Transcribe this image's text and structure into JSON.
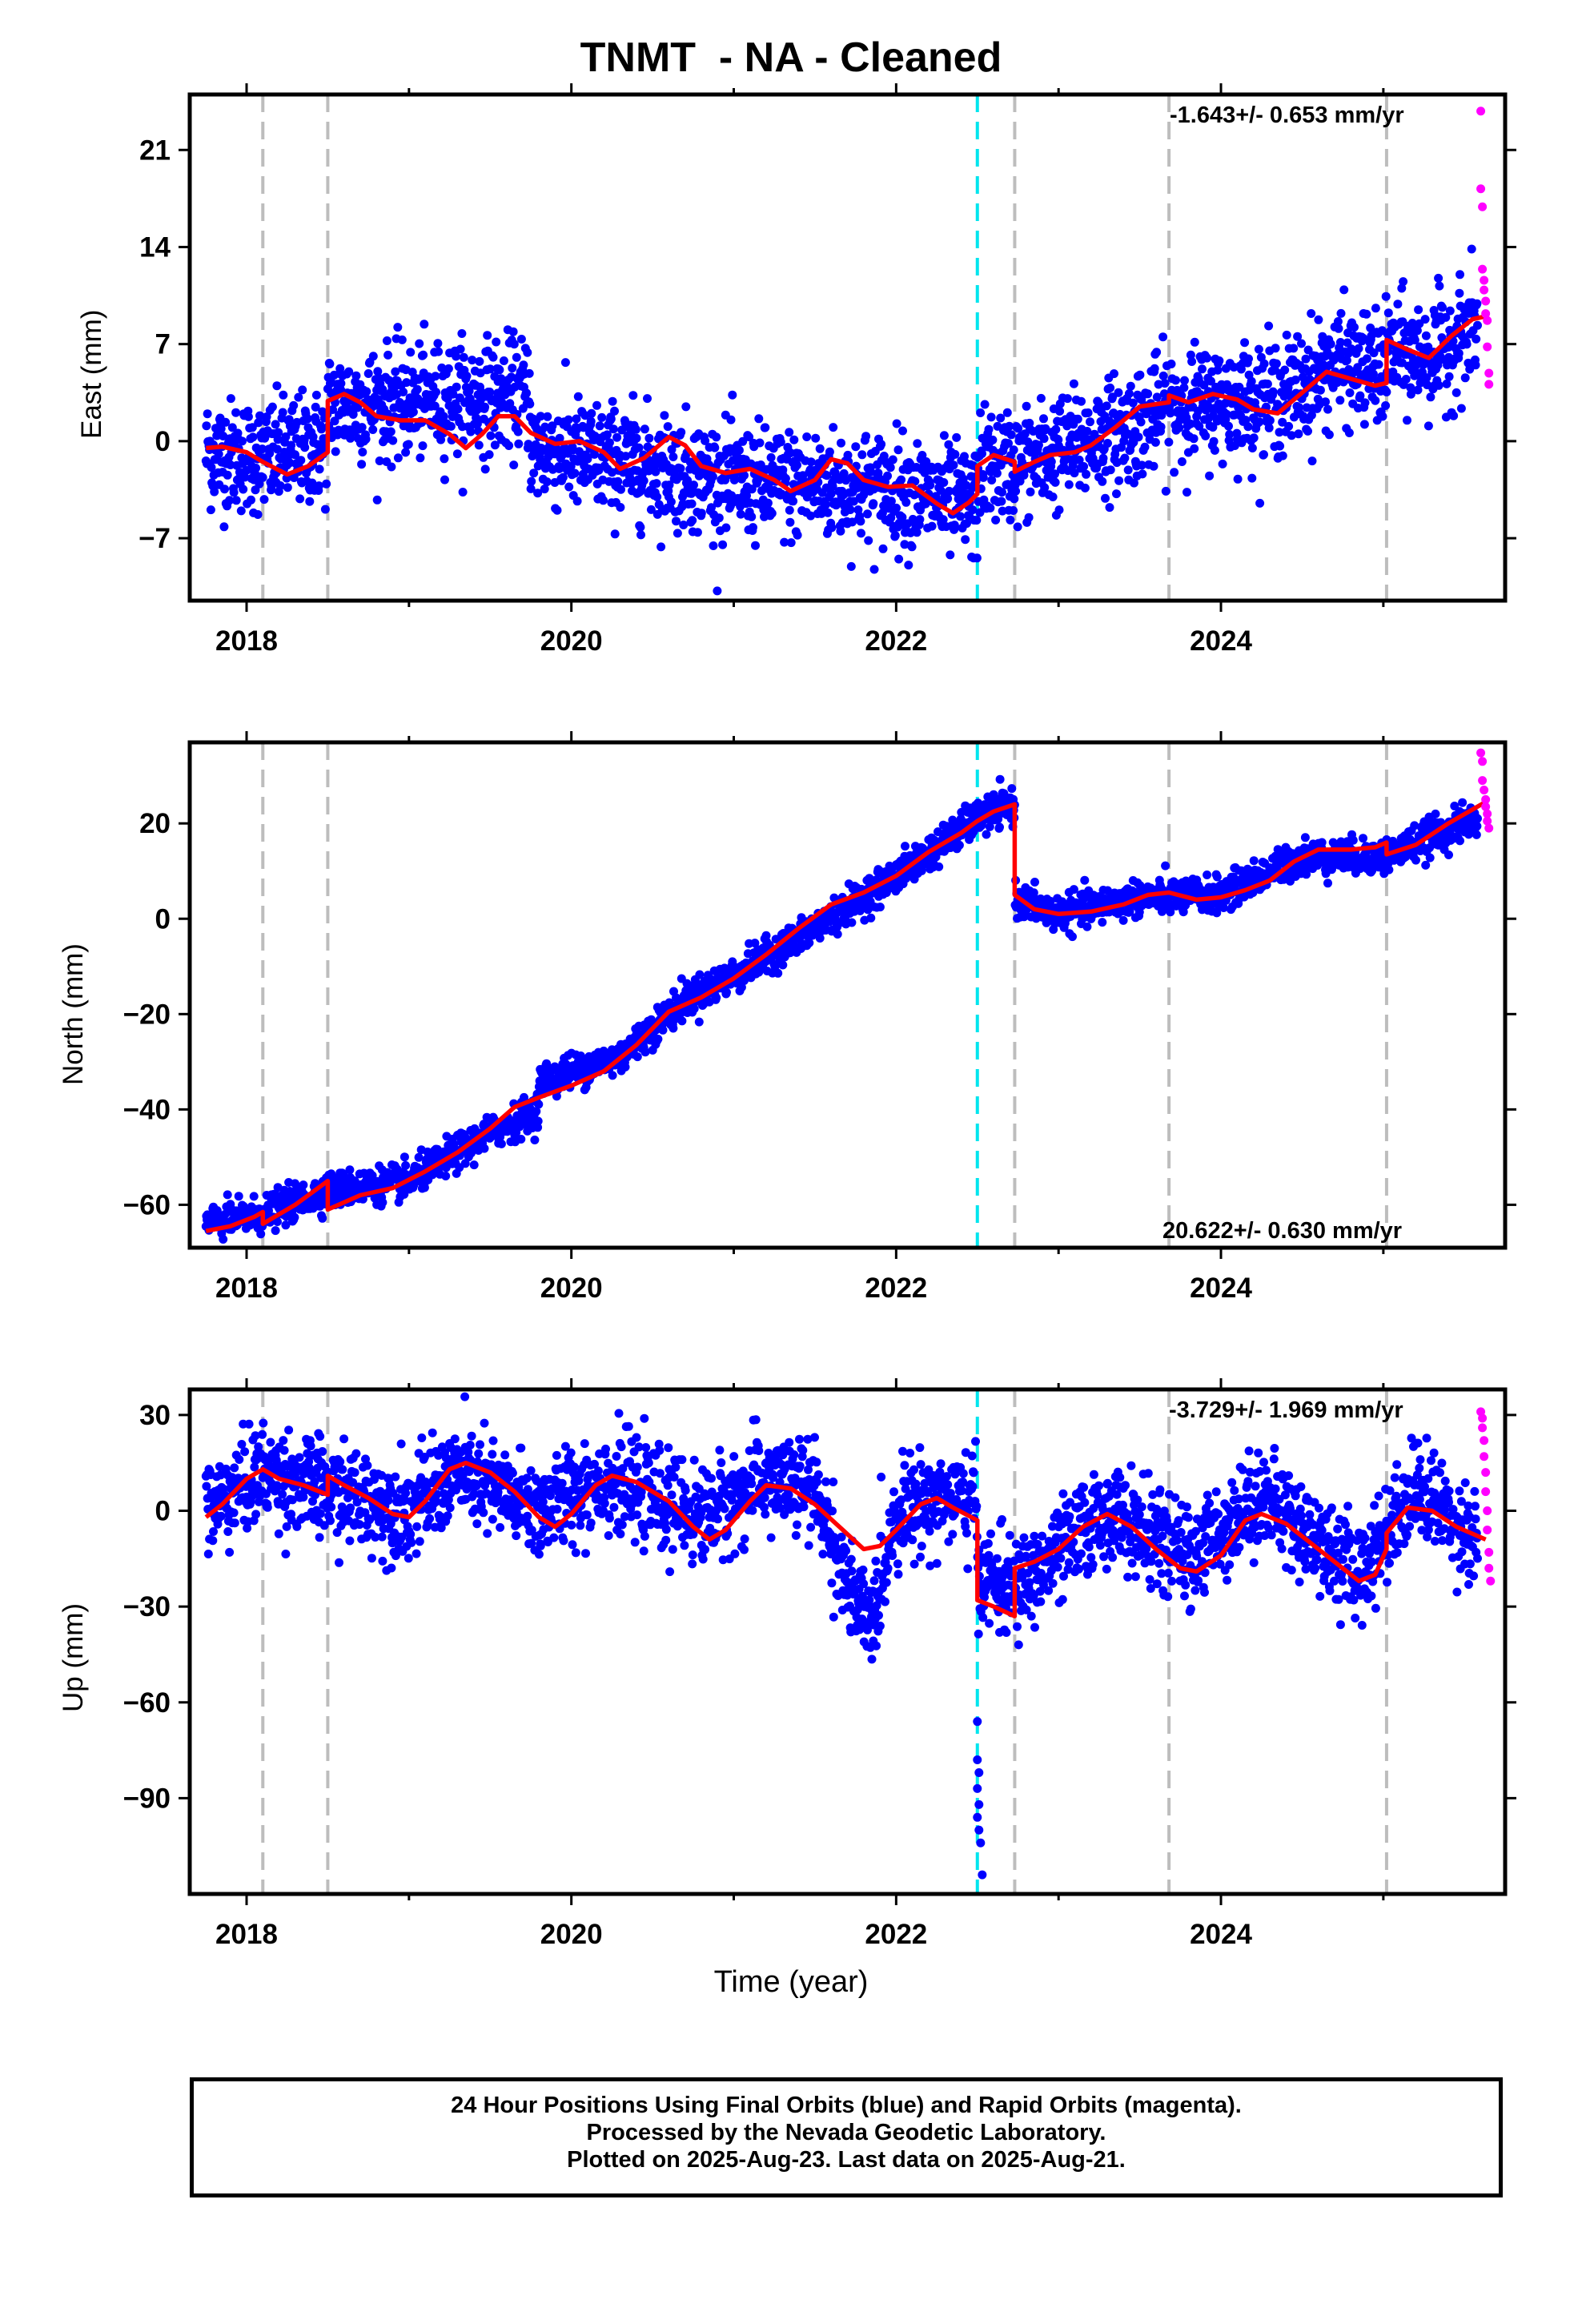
{
  "title": "TNMT  - NA - Cleaned",
  "xlabel": "Time (year)",
  "footer": [
    "24 Hour Positions Using Final Orbits (blue) and Rapid Orbits (magenta).",
    "Processed by the Nevada Geodetic Laboratory.",
    "Plotted on 2025-Aug-23. Last data on 2025-Aug-21."
  ],
  "colors": {
    "final_orbits": "#0000ff",
    "rapid_orbits": "#ff00ff",
    "model_fit": "#ff0000",
    "gray_event_lines": "#bdbdbd",
    "cyan_event_line": "#00e5ee",
    "axes": "#000000"
  },
  "chart_data": [
    {
      "type": "scatter",
      "ylabel": "East (mm)",
      "rate_label": "-1.643+/- 0.653 mm/yr",
      "xlim": [
        2017.65,
        2025.75
      ],
      "ylim": [
        -11.5,
        25
      ],
      "xticks": [
        2018,
        2020,
        2022,
        2024
      ],
      "yticks": [
        -7,
        0,
        7,
        14,
        21
      ],
      "event_lines_gray": [
        2018.1,
        2018.5,
        2022.73,
        2023.68,
        2025.02
      ],
      "event_lines_cyan": [
        2022.5
      ],
      "model_fit": [
        [
          2017.75,
          -0.5
        ],
        [
          2017.85,
          -0.4
        ],
        [
          2018.0,
          -0.8
        ],
        [
          2018.1,
          -1.5
        ],
        [
          2018.25,
          -2.4
        ],
        [
          2018.38,
          -1.8
        ],
        [
          2018.5,
          -0.8
        ],
        [
          2018.5,
          2.9
        ],
        [
          2018.6,
          3.4
        ],
        [
          2018.7,
          2.8
        ],
        [
          2018.8,
          1.8
        ],
        [
          2018.95,
          1.5
        ],
        [
          2019.1,
          1.5
        ],
        [
          2019.25,
          0.5
        ],
        [
          2019.35,
          -0.5
        ],
        [
          2019.45,
          0.5
        ],
        [
          2019.55,
          1.8
        ],
        [
          2019.65,
          1.8
        ],
        [
          2019.75,
          0.6
        ],
        [
          2019.9,
          -0.2
        ],
        [
          2020.05,
          0.0
        ],
        [
          2020.2,
          -0.8
        ],
        [
          2020.3,
          -2.0
        ],
        [
          2020.45,
          -1.2
        ],
        [
          2020.6,
          0.3
        ],
        [
          2020.7,
          -0.3
        ],
        [
          2020.8,
          -1.8
        ],
        [
          2020.95,
          -2.3
        ],
        [
          2021.1,
          -2.0
        ],
        [
          2021.25,
          -2.8
        ],
        [
          2021.35,
          -3.6
        ],
        [
          2021.5,
          -2.8
        ],
        [
          2021.6,
          -1.3
        ],
        [
          2021.7,
          -1.6
        ],
        [
          2021.8,
          -2.8
        ],
        [
          2021.95,
          -3.3
        ],
        [
          2022.1,
          -3.2
        ],
        [
          2022.25,
          -4.5
        ],
        [
          2022.35,
          -5.2
        ],
        [
          2022.45,
          -4.4
        ],
        [
          2022.5,
          -3.8
        ],
        [
          2022.5,
          -1.8
        ],
        [
          2022.6,
          -1.0
        ],
        [
          2022.73,
          -1.5
        ],
        [
          2022.73,
          -2.2
        ],
        [
          2022.85,
          -1.5
        ],
        [
          2022.95,
          -1.0
        ],
        [
          2023.1,
          -0.8
        ],
        [
          2023.2,
          -0.3
        ],
        [
          2023.35,
          1.0
        ],
        [
          2023.5,
          2.5
        ],
        [
          2023.68,
          2.8
        ],
        [
          2023.68,
          3.3
        ],
        [
          2023.8,
          2.8
        ],
        [
          2023.95,
          3.4
        ],
        [
          2024.1,
          3.0
        ],
        [
          2024.2,
          2.3
        ],
        [
          2024.35,
          2.0
        ],
        [
          2024.5,
          3.5
        ],
        [
          2024.65,
          5.0
        ],
        [
          2024.8,
          4.5
        ],
        [
          2024.95,
          4.0
        ],
        [
          2025.02,
          4.2
        ],
        [
          2025.02,
          7.3
        ],
        [
          2025.15,
          6.6
        ],
        [
          2025.28,
          6.0
        ],
        [
          2025.42,
          7.6
        ],
        [
          2025.55,
          8.8
        ],
        [
          2025.63,
          9.0
        ]
      ],
      "final_orbits_trend": [
        [
          2017.75,
          -0.8
        ],
        [
          2018.1,
          -1.2
        ],
        [
          2018.5,
          -0.3
        ],
        [
          2018.5,
          2.6
        ],
        [
          2019.0,
          2.8
        ],
        [
          2019.75,
          3.5
        ],
        [
          2019.75,
          -0.5
        ],
        [
          2020.5,
          -1.8
        ],
        [
          2021.0,
          -3.0
        ],
        [
          2021.5,
          -3.2
        ],
        [
          2022.0,
          -3.5
        ],
        [
          2022.5,
          -4.8
        ],
        [
          2022.5,
          -1.8
        ],
        [
          2022.73,
          -1.8
        ],
        [
          2023.0,
          -0.8
        ],
        [
          2023.4,
          0.8
        ],
        [
          2023.68,
          2.5
        ],
        [
          2024.0,
          2.8
        ],
        [
          2024.4,
          3.2
        ],
        [
          2024.7,
          5.5
        ],
        [
          2025.02,
          5.0
        ],
        [
          2025.02,
          6.5
        ],
        [
          2025.3,
          6.0
        ],
        [
          2025.6,
          8.5
        ]
      ],
      "final_orbits_scatter_sd": 2.0,
      "rapid_orbits": [
        [
          2025.6,
          23.8
        ],
        [
          2025.6,
          18.2
        ],
        [
          2025.61,
          16.9
        ],
        [
          2025.61,
          12.4
        ],
        [
          2025.62,
          11.6
        ],
        [
          2025.62,
          10.9
        ],
        [
          2025.63,
          10.1
        ],
        [
          2025.63,
          9.2
        ],
        [
          2025.64,
          8.7
        ],
        [
          2025.64,
          6.8
        ],
        [
          2025.65,
          4.9
        ],
        [
          2025.65,
          4.1
        ]
      ]
    },
    {
      "type": "scatter",
      "ylabel": "North (mm)",
      "rate_label": "20.622+/- 0.630 mm/yr",
      "xlim": [
        2017.65,
        2025.75
      ],
      "ylim": [
        -69,
        37
      ],
      "xticks": [
        2018,
        2020,
        2022,
        2024
      ],
      "yticks": [
        -60,
        -40,
        -20,
        0,
        20
      ],
      "event_lines_gray": [
        2018.1,
        2018.5,
        2022.73,
        2023.68,
        2025.02
      ],
      "event_lines_cyan": [
        2022.5
      ],
      "model_fit": [
        [
          2017.75,
          -65.5
        ],
        [
          2017.9,
          -64.5
        ],
        [
          2018.05,
          -62.5
        ],
        [
          2018.1,
          -61.5
        ],
        [
          2018.1,
          -64
        ],
        [
          2018.3,
          -60
        ],
        [
          2018.5,
          -55
        ],
        [
          2018.5,
          -61
        ],
        [
          2018.7,
          -58
        ],
        [
          2018.9,
          -56.5
        ],
        [
          2019.1,
          -53
        ],
        [
          2019.3,
          -49
        ],
        [
          2019.5,
          -44
        ],
        [
          2019.65,
          -39.5
        ],
        [
          2019.8,
          -37.5
        ],
        [
          2020.0,
          -35
        ],
        [
          2020.2,
          -32
        ],
        [
          2020.4,
          -26.5
        ],
        [
          2020.6,
          -19.5
        ],
        [
          2020.8,
          -16.5
        ],
        [
          2021.0,
          -12.5
        ],
        [
          2021.2,
          -7.5
        ],
        [
          2021.4,
          -2
        ],
        [
          2021.6,
          3
        ],
        [
          2021.8,
          5.5
        ],
        [
          2022.0,
          9
        ],
        [
          2022.2,
          14
        ],
        [
          2022.4,
          18
        ],
        [
          2022.5,
          20.5
        ],
        [
          2022.6,
          22.5
        ],
        [
          2022.73,
          24
        ],
        [
          2022.73,
          5
        ],
        [
          2022.85,
          2
        ],
        [
          2023.0,
          1
        ],
        [
          2023.2,
          1.5
        ],
        [
          2023.4,
          3
        ],
        [
          2023.55,
          5
        ],
        [
          2023.68,
          5.5
        ],
        [
          2023.85,
          4
        ],
        [
          2024.0,
          4.5
        ],
        [
          2024.15,
          6
        ],
        [
          2024.3,
          8
        ],
        [
          2024.45,
          12
        ],
        [
          2024.6,
          14.5
        ],
        [
          2024.8,
          14.5
        ],
        [
          2024.95,
          15
        ],
        [
          2025.02,
          16
        ],
        [
          2025.02,
          13.5
        ],
        [
          2025.2,
          15.5
        ],
        [
          2025.4,
          20
        ],
        [
          2025.63,
          24.5
        ]
      ],
      "final_orbits_trend": [
        [
          2017.75,
          -64
        ],
        [
          2018.1,
          -62
        ],
        [
          2018.5,
          -57
        ],
        [
          2019.0,
          -55
        ],
        [
          2019.5,
          -45
        ],
        [
          2019.8,
          -40
        ],
        [
          2019.8,
          -34
        ],
        [
          2020.3,
          -29
        ],
        [
          2020.7,
          -17
        ],
        [
          2021.0,
          -12
        ],
        [
          2021.5,
          -2
        ],
        [
          2022.0,
          9
        ],
        [
          2022.5,
          21
        ],
        [
          2022.73,
          24
        ],
        [
          2022.73,
          4
        ],
        [
          2023.0,
          1
        ],
        [
          2023.5,
          4.5
        ],
        [
          2024.0,
          5
        ],
        [
          2024.5,
          13
        ],
        [
          2025.0,
          13
        ],
        [
          2025.6,
          21.5
        ]
      ],
      "final_orbits_scatter_sd": 1.8,
      "rapid_orbits": [
        [
          2025.6,
          34.8
        ],
        [
          2025.61,
          33
        ],
        [
          2025.61,
          29
        ],
        [
          2025.62,
          27
        ],
        [
          2025.63,
          25
        ],
        [
          2025.63,
          23.5
        ],
        [
          2025.64,
          22
        ],
        [
          2025.64,
          20.5
        ],
        [
          2025.65,
          19
        ]
      ]
    },
    {
      "type": "scatter",
      "ylabel": "Up (mm)",
      "rate_label": "-3.729+/- 1.969 mm/yr",
      "xlim": [
        2017.65,
        2025.75
      ],
      "ylim": [
        -120,
        38
      ],
      "xticks": [
        2018,
        2020,
        2022,
        2024
      ],
      "yticks": [
        -90,
        -60,
        -30,
        0,
        30
      ],
      "event_lines_gray": [
        2018.1,
        2018.5,
        2022.73,
        2023.68,
        2025.02
      ],
      "event_lines_cyan": [
        2022.5
      ],
      "model_fit": [
        [
          2017.75,
          -2
        ],
        [
          2017.85,
          2
        ],
        [
          2018.0,
          10
        ],
        [
          2018.1,
          13
        ],
        [
          2018.2,
          10
        ],
        [
          2018.35,
          8
        ],
        [
          2018.5,
          5
        ],
        [
          2018.5,
          11
        ],
        [
          2018.6,
          8
        ],
        [
          2018.75,
          4
        ],
        [
          2018.9,
          -1
        ],
        [
          2019.0,
          -2
        ],
        [
          2019.1,
          3
        ],
        [
          2019.25,
          13
        ],
        [
          2019.35,
          15
        ],
        [
          2019.5,
          12
        ],
        [
          2019.65,
          6
        ],
        [
          2019.8,
          -2
        ],
        [
          2019.9,
          -5
        ],
        [
          2020.0,
          -1
        ],
        [
          2020.15,
          8
        ],
        [
          2020.25,
          11
        ],
        [
          2020.4,
          9
        ],
        [
          2020.6,
          3
        ],
        [
          2020.75,
          -5
        ],
        [
          2020.85,
          -9
        ],
        [
          2020.95,
          -6
        ],
        [
          2021.1,
          3
        ],
        [
          2021.2,
          8
        ],
        [
          2021.35,
          7
        ],
        [
          2021.5,
          2
        ],
        [
          2021.65,
          -5
        ],
        [
          2021.8,
          -12
        ],
        [
          2021.9,
          -11
        ],
        [
          2022.0,
          -6
        ],
        [
          2022.15,
          2
        ],
        [
          2022.25,
          4
        ],
        [
          2022.35,
          1
        ],
        [
          2022.5,
          -3
        ],
        [
          2022.5,
          -28
        ],
        [
          2022.6,
          -30
        ],
        [
          2022.73,
          -33
        ],
        [
          2022.73,
          -18
        ],
        [
          2022.85,
          -16
        ],
        [
          2023.0,
          -12
        ],
        [
          2023.15,
          -5
        ],
        [
          2023.3,
          -1
        ],
        [
          2023.45,
          -5
        ],
        [
          2023.6,
          -12
        ],
        [
          2023.75,
          -18
        ],
        [
          2023.85,
          -19
        ],
        [
          2024.0,
          -14
        ],
        [
          2024.15,
          -3
        ],
        [
          2024.25,
          -1
        ],
        [
          2024.4,
          -4
        ],
        [
          2024.55,
          -10
        ],
        [
          2024.7,
          -16
        ],
        [
          2024.85,
          -22
        ],
        [
          2024.95,
          -20
        ],
        [
          2025.02,
          -12
        ],
        [
          2025.02,
          -7
        ],
        [
          2025.15,
          1
        ],
        [
          2025.3,
          0
        ],
        [
          2025.45,
          -5
        ],
        [
          2025.63,
          -9
        ]
      ],
      "final_orbits_trend": [
        [
          2017.75,
          0
        ],
        [
          2018.1,
          12
        ],
        [
          2018.5,
          6
        ],
        [
          2019.0,
          0
        ],
        [
          2019.3,
          12
        ],
        [
          2019.8,
          0
        ],
        [
          2020.2,
          10
        ],
        [
          2020.8,
          -2
        ],
        [
          2021.2,
          10
        ],
        [
          2021.5,
          6
        ],
        [
          2021.75,
          -30
        ],
        [
          2021.85,
          -35
        ],
        [
          2022.0,
          0
        ],
        [
          2022.3,
          5
        ],
        [
          2022.5,
          2
        ],
        [
          2022.5,
          -20
        ],
        [
          2022.73,
          -25
        ],
        [
          2023.3,
          0
        ],
        [
          2023.8,
          -15
        ],
        [
          2024.25,
          5
        ],
        [
          2024.85,
          -20
        ],
        [
          2025.2,
          8
        ],
        [
          2025.6,
          -10
        ]
      ],
      "final_orbits_scatter_sd": 7.5,
      "outliers": [
        [
          2022.5,
          -66
        ],
        [
          2022.5,
          -78
        ],
        [
          2022.51,
          -82
        ],
        [
          2022.5,
          -87
        ],
        [
          2022.51,
          -92
        ],
        [
          2022.5,
          -96
        ],
        [
          2022.51,
          -100
        ],
        [
          2022.52,
          -104
        ],
        [
          2022.53,
          -114
        ]
      ],
      "rapid_orbits": [
        [
          2025.6,
          31
        ],
        [
          2025.61,
          29
        ],
        [
          2025.61,
          26
        ],
        [
          2025.62,
          22
        ],
        [
          2025.62,
          17
        ],
        [
          2025.63,
          12
        ],
        [
          2025.63,
          6
        ],
        [
          2025.64,
          0
        ],
        [
          2025.64,
          -6
        ],
        [
          2025.65,
          -13
        ],
        [
          2025.65,
          -18
        ],
        [
          2025.66,
          -22
        ]
      ]
    }
  ]
}
